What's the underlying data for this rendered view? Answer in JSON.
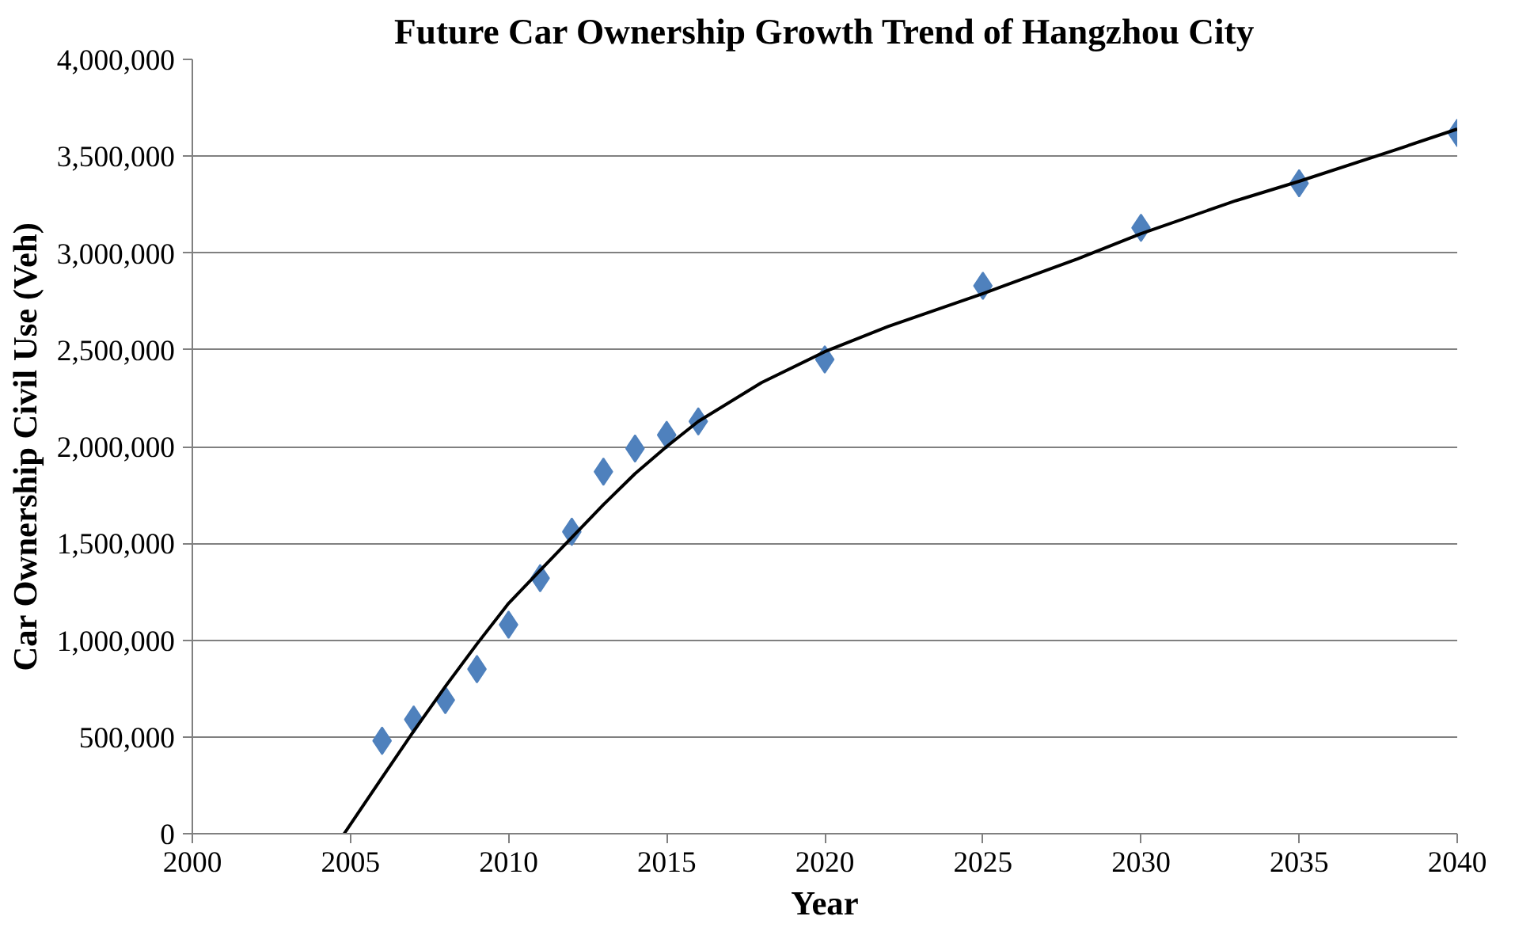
{
  "chart_data": {
    "type": "scatter",
    "title": "Future Car Ownership Growth Trend of Hangzhou City",
    "xlabel": "Year",
    "ylabel": "Car Ownership Civil Use (Veh)",
    "xlim": [
      2000,
      2040
    ],
    "xticks": [
      2000,
      2005,
      2010,
      2015,
      2020,
      2025,
      2030,
      2035,
      2040
    ],
    "ylim": [
      0,
      4000000
    ],
    "yticks": [
      {
        "value": 0,
        "label": "0"
      },
      {
        "value": 500000,
        "label": "500,000"
      },
      {
        "value": 1000000,
        "label": "1,000,000"
      },
      {
        "value": 1500000,
        "label": "1,500,000"
      },
      {
        "value": 2000000,
        "label": "2,000,000"
      },
      {
        "value": 2500000,
        "label": "2,500,000"
      },
      {
        "value": 3000000,
        "label": "3,000,000"
      },
      {
        "value": 3500000,
        "label": "3,500,000"
      },
      {
        "value": 4000000,
        "label": "4,000,000"
      }
    ],
    "grid": "y",
    "marker": "diamond",
    "series": [
      {
        "color": "#4f81bd",
        "x": [
          2006,
          2007,
          2008,
          2009,
          2010,
          2011,
          2012,
          2013,
          2014,
          2015,
          2016,
          2020,
          2025,
          2030,
          2035,
          2040
        ],
        "values": [
          480000,
          590000,
          690000,
          850000,
          1080000,
          1320000,
          1560000,
          1870000,
          1990000,
          2060000,
          2130000,
          2450000,
          2830000,
          3130000,
          3360000,
          3620000
        ]
      },
      {
        "type": "line",
        "color": "#000000",
        "marker": "none",
        "x": [
          2004.8,
          2006,
          2007,
          2008,
          2009,
          2010,
          2011,
          2012,
          2013,
          2014,
          2015,
          2016,
          2018,
          2020,
          2022,
          2025,
          2028,
          2030,
          2033,
          2035,
          2038,
          2040
        ],
        "values": [
          0,
          290000,
          530000,
          760000,
          980000,
          1190000,
          1360000,
          1530000,
          1700000,
          1860000,
          2000000,
          2130000,
          2330000,
          2490000,
          2620000,
          2790000,
          2970000,
          3100000,
          3270000,
          3370000,
          3530000,
          3640000
        ]
      }
    ]
  }
}
